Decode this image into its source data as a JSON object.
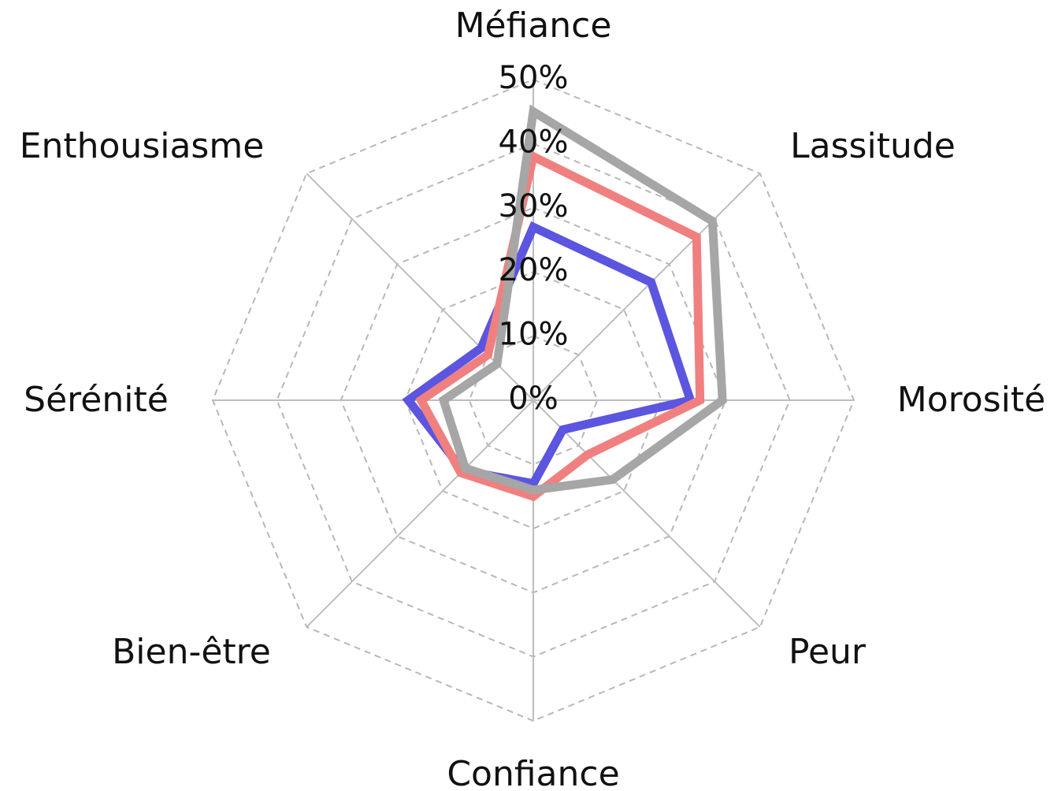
{
  "chart_data": {
    "type": "radar",
    "categories": [
      "Méfiance",
      "Lassitude",
      "Morosité",
      "Peur",
      "Confiance",
      "Bien-être",
      "Sérénité",
      "Enthousiasme"
    ],
    "series": [
      {
        "color": "#5b55e0",
        "values": [
          27,
          26,
          24.5,
          6.5,
          13,
          15.5,
          19.5,
          11.5
        ]
      },
      {
        "color": "#f08080",
        "values": [
          38,
          36,
          26,
          12,
          15,
          16,
          17.5,
          10
        ]
      },
      {
        "color": "#a6a6a6",
        "values": [
          45,
          39.5,
          29.5,
          17.5,
          14,
          15,
          14,
          8
        ]
      }
    ],
    "rlim": [
      0,
      50
    ],
    "rticks": [
      {
        "value": 0,
        "label": "0%"
      },
      {
        "value": 10,
        "label": "10%"
      },
      {
        "value": 20,
        "label": "20%"
      },
      {
        "value": 30,
        "label": "30%"
      },
      {
        "value": 40,
        "label": "40%"
      },
      {
        "value": 50,
        "label": "50%"
      }
    ],
    "grid": true
  }
}
